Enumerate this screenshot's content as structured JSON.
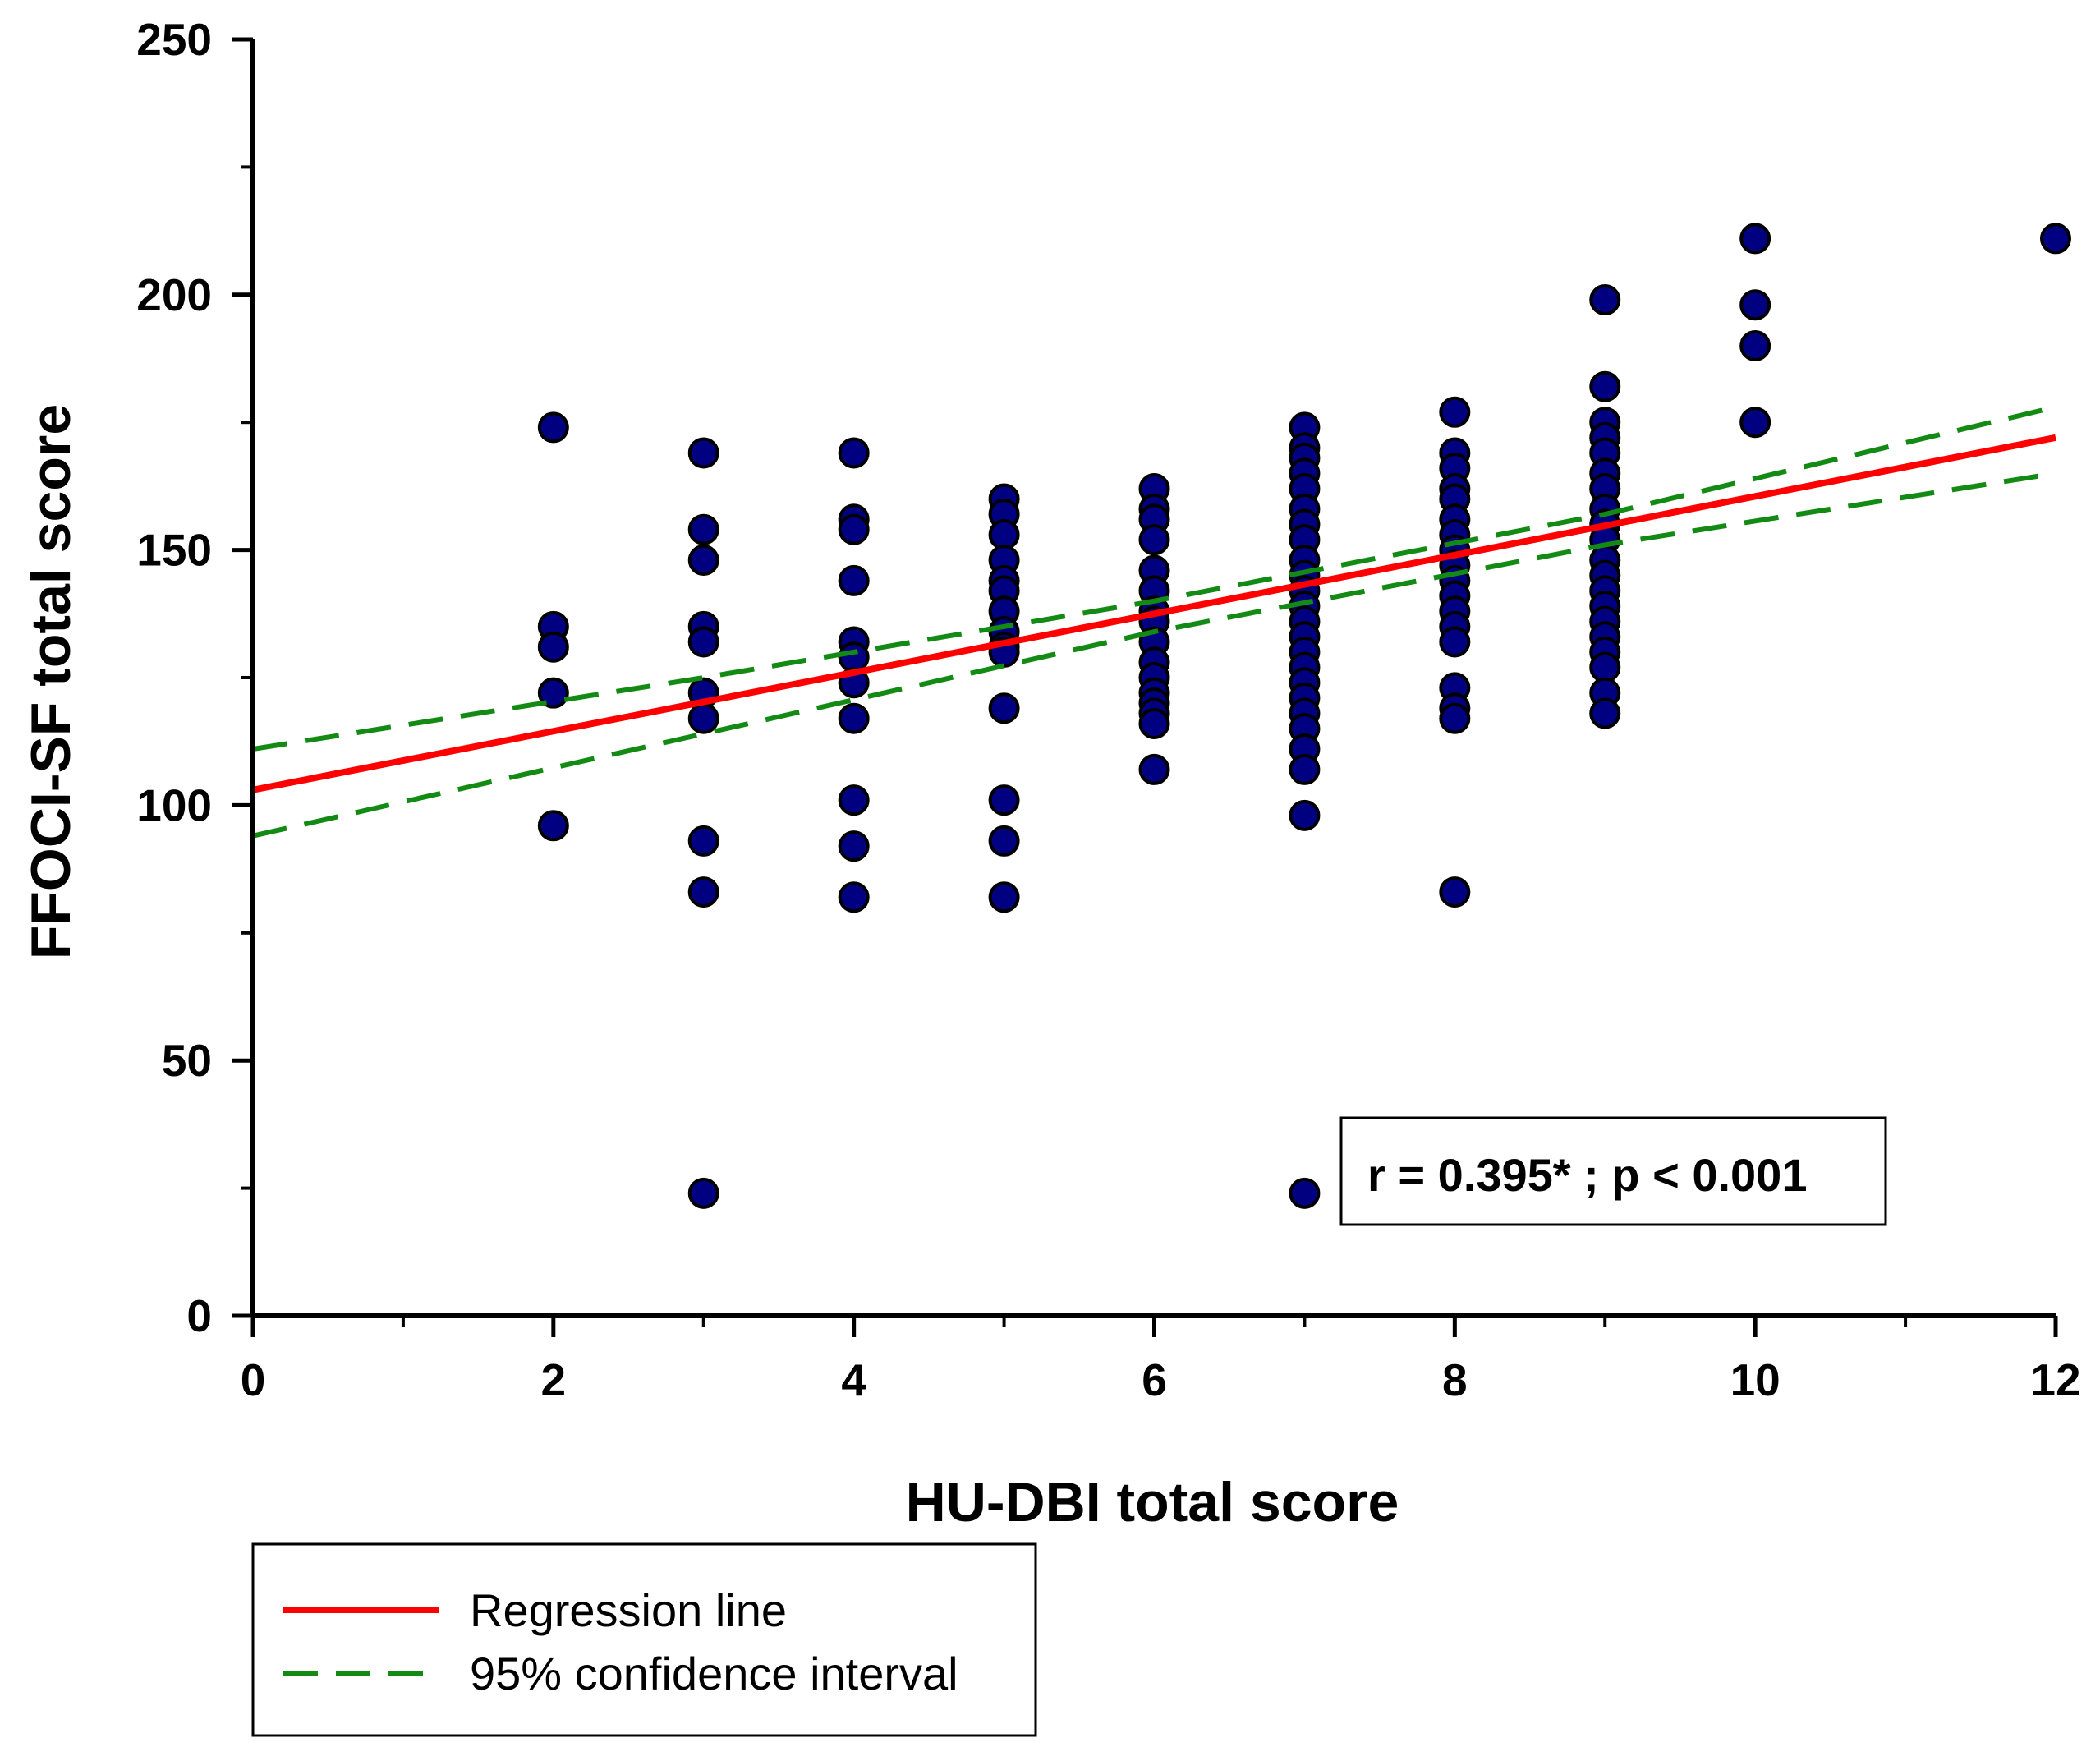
{
  "chart_data": {
    "type": "scatter",
    "xlabel": "HU-DBI total score",
    "ylabel": "FFOCI-SF total score",
    "xlim": [
      0,
      12
    ],
    "ylim": [
      0,
      250
    ],
    "x_ticks": [
      "0",
      "2",
      "4",
      "6",
      "8",
      "10",
      "12"
    ],
    "y_ticks": [
      "0",
      "50",
      "100",
      "150",
      "200",
      "250"
    ],
    "grid": false,
    "annotation": "r = 0.395* ; p < 0.001",
    "legend": {
      "position": "below-left",
      "items": [
        {
          "label": "Regression line",
          "color": "#ff0000",
          "style": "solid"
        },
        {
          "label": "95% confidence interval",
          "color": "#138a13",
          "style": "dashed"
        }
      ]
    },
    "marker_color": "#000080",
    "points": [
      [
        2,
        174
      ],
      [
        2,
        135
      ],
      [
        2,
        131
      ],
      [
        2,
        122
      ],
      [
        2,
        96
      ],
      [
        3,
        169
      ],
      [
        3,
        154
      ],
      [
        3,
        148
      ],
      [
        3,
        135
      ],
      [
        3,
        132
      ],
      [
        3,
        122
      ],
      [
        3,
        117
      ],
      [
        3,
        93
      ],
      [
        3,
        83
      ],
      [
        3,
        24
      ],
      [
        4,
        169
      ],
      [
        4,
        156
      ],
      [
        4,
        154
      ],
      [
        4,
        144
      ],
      [
        4,
        132
      ],
      [
        4,
        129
      ],
      [
        4,
        124
      ],
      [
        4,
        117
      ],
      [
        4,
        101
      ],
      [
        4,
        92
      ],
      [
        4,
        82
      ],
      [
        5,
        160
      ],
      [
        5,
        157
      ],
      [
        5,
        153
      ],
      [
        5,
        148
      ],
      [
        5,
        144
      ],
      [
        5,
        142
      ],
      [
        5,
        138
      ],
      [
        5,
        134
      ],
      [
        5,
        131
      ],
      [
        5,
        130
      ],
      [
        5,
        119
      ],
      [
        5,
        101
      ],
      [
        5,
        93
      ],
      [
        5,
        82
      ],
      [
        6,
        162
      ],
      [
        6,
        158
      ],
      [
        6,
        156
      ],
      [
        6,
        152
      ],
      [
        6,
        146
      ],
      [
        6,
        142
      ],
      [
        6,
        138
      ],
      [
        6,
        136
      ],
      [
        6,
        132
      ],
      [
        6,
        128
      ],
      [
        6,
        125
      ],
      [
        6,
        122
      ],
      [
        6,
        120
      ],
      [
        6,
        118
      ],
      [
        6,
        116
      ],
      [
        6,
        107
      ],
      [
        7,
        174
      ],
      [
        7,
        170
      ],
      [
        7,
        168
      ],
      [
        7,
        165
      ],
      [
        7,
        162
      ],
      [
        7,
        158
      ],
      [
        7,
        155
      ],
      [
        7,
        152
      ],
      [
        7,
        148
      ],
      [
        7,
        145
      ],
      [
        7,
        142
      ],
      [
        7,
        139
      ],
      [
        7,
        136
      ],
      [
        7,
        133
      ],
      [
        7,
        130
      ],
      [
        7,
        127
      ],
      [
        7,
        124
      ],
      [
        7,
        121
      ],
      [
        7,
        118
      ],
      [
        7,
        115
      ],
      [
        7,
        111
      ],
      [
        7,
        107
      ],
      [
        7,
        98
      ],
      [
        7,
        24
      ],
      [
        8,
        177
      ],
      [
        8,
        169
      ],
      [
        8,
        166
      ],
      [
        8,
        162
      ],
      [
        8,
        160
      ],
      [
        8,
        156
      ],
      [
        8,
        153
      ],
      [
        8,
        150
      ],
      [
        8,
        147
      ],
      [
        8,
        144
      ],
      [
        8,
        141
      ],
      [
        8,
        138
      ],
      [
        8,
        135
      ],
      [
        8,
        132
      ],
      [
        8,
        123
      ],
      [
        8,
        119
      ],
      [
        8,
        117
      ],
      [
        8,
        83
      ],
      [
        9,
        199
      ],
      [
        9,
        182
      ],
      [
        9,
        175
      ],
      [
        9,
        172
      ],
      [
        9,
        169
      ],
      [
        9,
        165
      ],
      [
        9,
        162
      ],
      [
        9,
        158
      ],
      [
        9,
        155
      ],
      [
        9,
        152
      ],
      [
        9,
        148
      ],
      [
        9,
        145
      ],
      [
        9,
        142
      ],
      [
        9,
        139
      ],
      [
        9,
        136
      ],
      [
        9,
        133
      ],
      [
        9,
        130
      ],
      [
        9,
        127
      ],
      [
        9,
        122
      ],
      [
        9,
        118
      ],
      [
        10,
        211
      ],
      [
        10,
        198
      ],
      [
        10,
        190
      ],
      [
        10,
        175
      ],
      [
        12,
        211
      ]
    ],
    "regression_line": {
      "x": [
        0,
        12
      ],
      "y": [
        103,
        172
      ]
    },
    "ci_upper": {
      "x": [
        0,
        3,
        6,
        9,
        12
      ],
      "y": [
        111,
        125,
        140,
        157,
        178
      ]
    },
    "ci_lower": {
      "x": [
        0,
        3,
        6,
        9,
        12
      ],
      "y": [
        94,
        114,
        134,
        151,
        165
      ]
    }
  }
}
